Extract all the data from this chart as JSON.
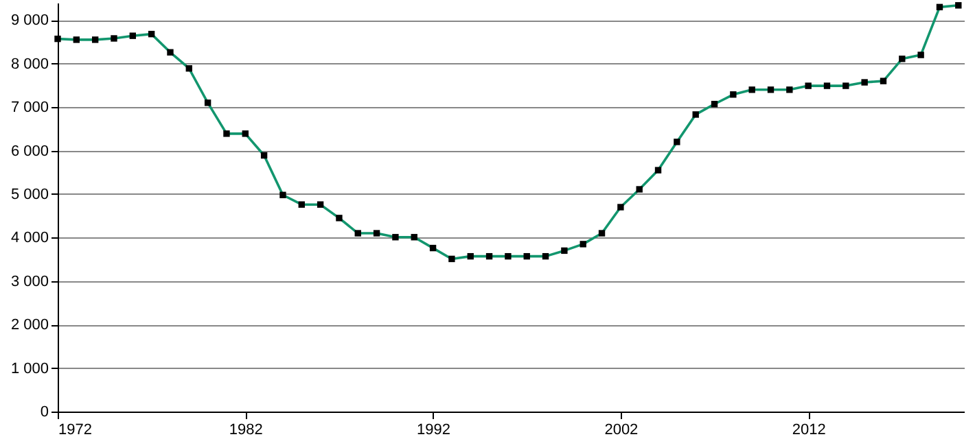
{
  "chart_data": {
    "type": "line",
    "x": [
      1972,
      1973,
      1974,
      1975,
      1976,
      1977,
      1978,
      1979,
      1980,
      1981,
      1982,
      1983,
      1984,
      1985,
      1986,
      1987,
      1988,
      1989,
      1990,
      1991,
      1992,
      1993,
      1994,
      1995,
      1996,
      1997,
      1998,
      1999,
      2000,
      2001,
      2002,
      2003,
      2004,
      2005,
      2006,
      2007,
      2008,
      2009,
      2010,
      2011,
      2012,
      2013,
      2014,
      2015,
      2016,
      2017,
      2018,
      2019,
      2020
    ],
    "series": [
      {
        "color": "#12966e",
        "values": [
          8570,
          8550,
          8550,
          8580,
          8640,
          8680,
          8260,
          7890,
          7100,
          6390,
          6390,
          5890,
          4980,
          4760,
          4760,
          4450,
          4100,
          4100,
          4010,
          4010,
          3760,
          3510,
          3570,
          3570,
          3570,
          3570,
          3570,
          3700,
          3850,
          4100,
          4700,
          5110,
          5550,
          6200,
          6830,
          7070,
          7290,
          7400,
          7400,
          7400,
          7490,
          7490,
          7490,
          7570,
          7600,
          8110,
          8200,
          9300,
          9340
        ]
      }
    ],
    "xlim": [
      1972,
      2020.3
    ],
    "xticks": [
      1972,
      1982,
      1992,
      2002,
      2012
    ],
    "ylim": [
      0,
      9400
    ],
    "yticks": [
      0,
      {
        "value": 1000,
        "label": "1 000"
      },
      {
        "value": 2000,
        "label": "2 000"
      },
      {
        "value": 3000,
        "label": "3 000"
      },
      {
        "value": 4000,
        "label": "4 000"
      },
      {
        "value": 5000,
        "label": "5 000"
      },
      {
        "value": 6000,
        "label": "6 000"
      },
      {
        "value": 7000,
        "label": "7 000"
      },
      {
        "value": 8000,
        "label": "8 000"
      },
      {
        "value": 9000,
        "label": "9 000"
      }
    ],
    "grid": "y",
    "marker": "square",
    "line_style": "solid"
  }
}
